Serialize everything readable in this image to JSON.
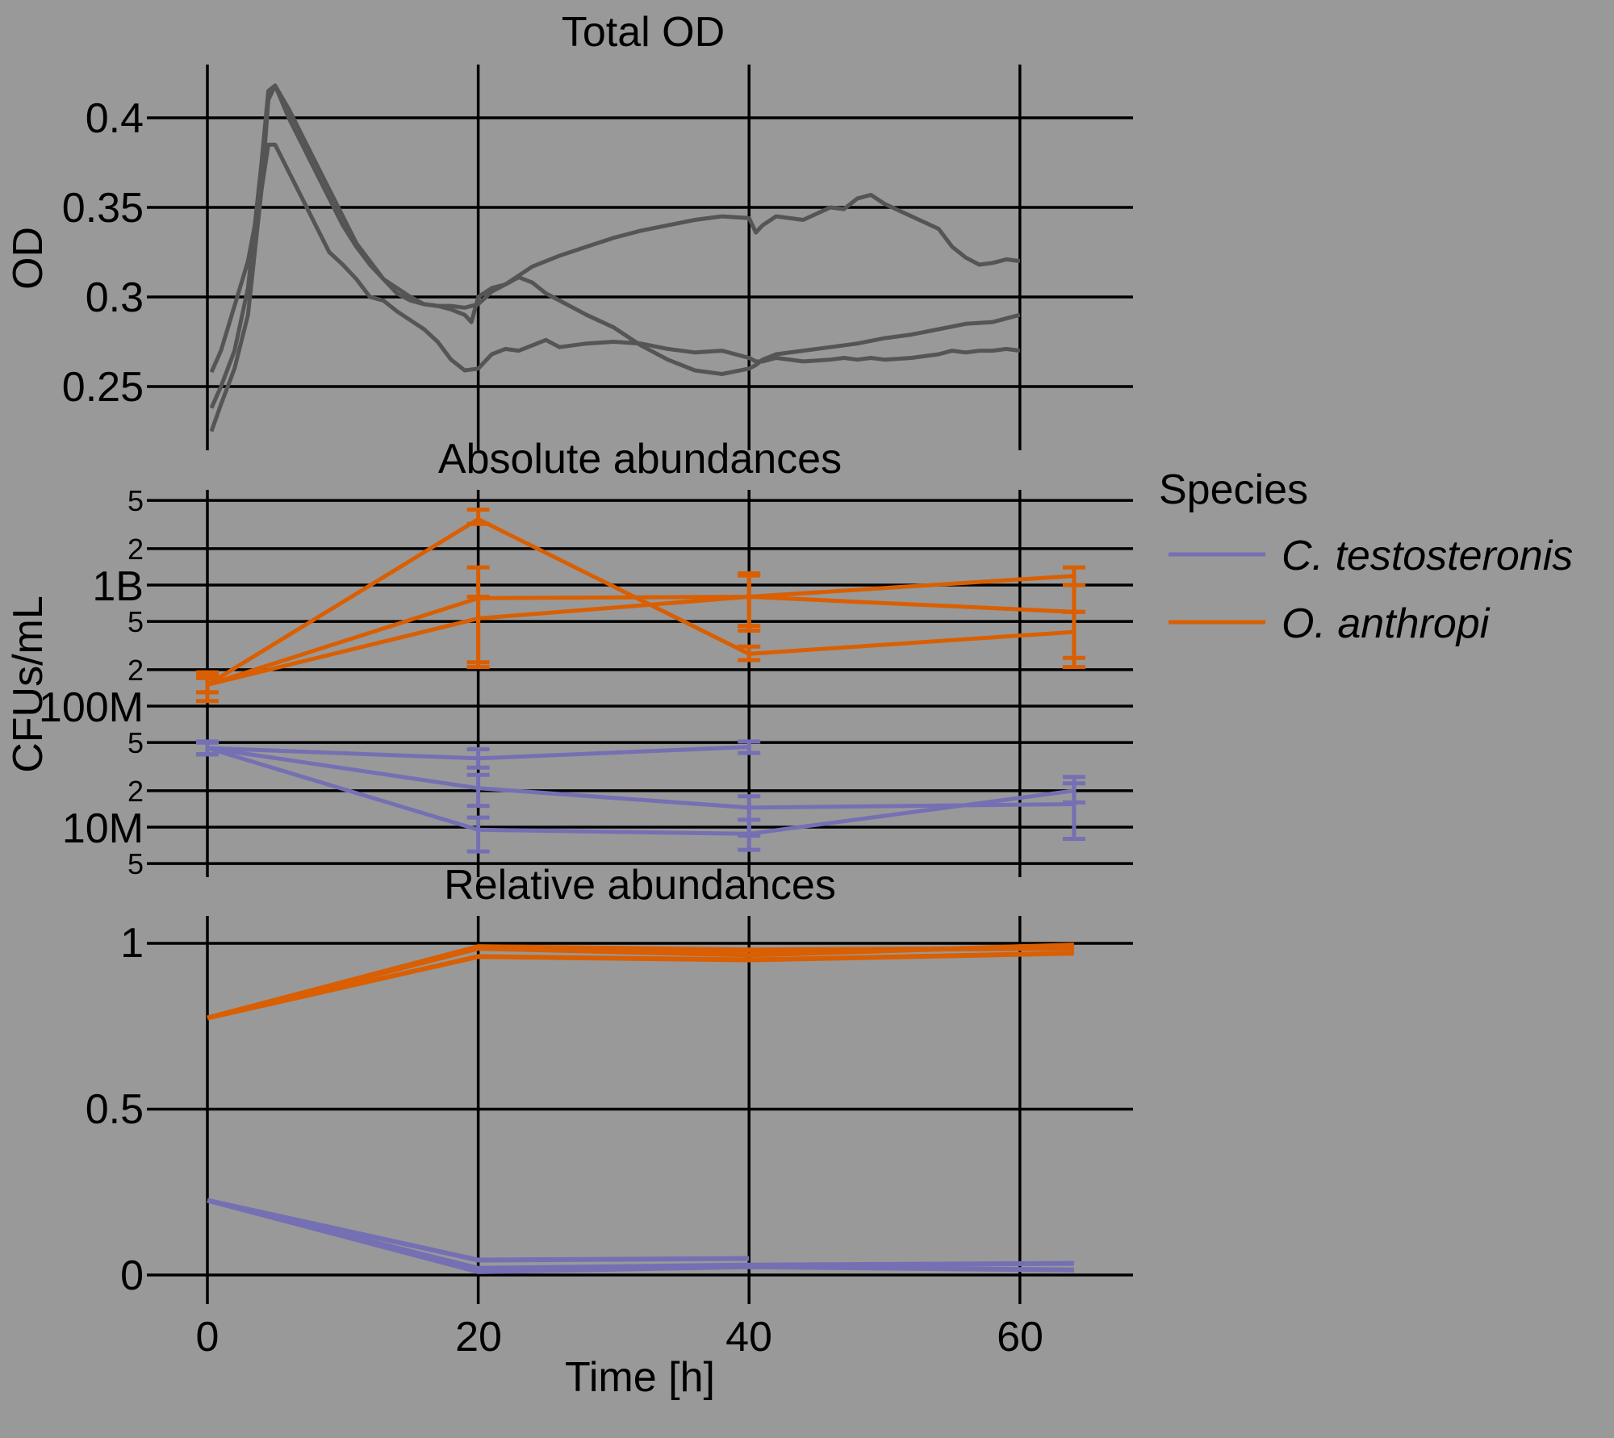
{
  "figure": {
    "xlabel": "Time [h]",
    "x_ticks": [
      "0",
      "20",
      "40",
      "60"
    ]
  },
  "panels": {
    "od": {
      "title": "Total OD",
      "ylabel": "OD",
      "y_ticks": [
        "0.4",
        "0.35",
        "0.3",
        "0.25"
      ]
    },
    "abs": {
      "title": "Absolute abundances",
      "ylabel": "CFUs/mL",
      "y_ticks_major": [
        "1B",
        "100M",
        "10M"
      ],
      "y_ticks_minor": [
        "5",
        "2",
        "5",
        "2",
        "5",
        "2",
        "5"
      ]
    },
    "rel": {
      "title": "Relative abundances",
      "y_ticks": [
        "1",
        "0.5",
        "0"
      ]
    }
  },
  "legend": {
    "title": "Species",
    "items": [
      {
        "label": "C. testosteronis",
        "color": "#7570b3"
      },
      {
        "label": "O. anthropi",
        "color": "#d95f02"
      }
    ]
  },
  "chart_data": [
    {
      "type": "line",
      "title": "Total OD",
      "xlabel": "Time [h]",
      "ylabel": "OD",
      "xlim": [
        -4,
        68
      ],
      "ylim": [
        0.22,
        0.43
      ],
      "grid": true,
      "color": "#555555",
      "series": [
        {
          "x": [
            0.3,
            1,
            2,
            3,
            4,
            4.5,
            5,
            6,
            7,
            8,
            9,
            10,
            11,
            12,
            13,
            14,
            15,
            16,
            17,
            18,
            19,
            20,
            21,
            22,
            23,
            24,
            25,
            26,
            28,
            30,
            32,
            34,
            36,
            38,
            40,
            40.5,
            41,
            42,
            44,
            46,
            47,
            48,
            49,
            50,
            52,
            54,
            55,
            56,
            57,
            58,
            59,
            60
          ],
          "y": [
            0.258,
            0.27,
            0.295,
            0.32,
            0.36,
            0.385,
            0.385,
            0.37,
            0.355,
            0.34,
            0.325,
            0.318,
            0.31,
            0.3,
            0.298,
            0.292,
            0.287,
            0.282,
            0.275,
            0.265,
            0.259,
            0.26,
            0.268,
            0.271,
            0.27,
            0.273,
            0.276,
            0.272,
            0.274,
            0.275,
            0.274,
            0.271,
            0.269,
            0.27,
            0.266,
            0.264,
            0.264,
            0.266,
            0.264,
            0.265,
            0.266,
            0.265,
            0.266,
            0.265,
            0.266,
            0.268,
            0.27,
            0.269,
            0.27,
            0.27,
            0.271,
            0.27
          ]
        },
        {
          "x": [
            0.3,
            1,
            2,
            3,
            4,
            4.5,
            5,
            6,
            7,
            8,
            9,
            10,
            11,
            12,
            13,
            14,
            15,
            16,
            17,
            18,
            19,
            20,
            21,
            22,
            23,
            24,
            25,
            26,
            28,
            30,
            32,
            34,
            36,
            38,
            40,
            40.5,
            41,
            42,
            44,
            46,
            48,
            50,
            52,
            54,
            56,
            58,
            60
          ],
          "y": [
            0.238,
            0.25,
            0.27,
            0.305,
            0.375,
            0.415,
            0.418,
            0.405,
            0.39,
            0.375,
            0.36,
            0.345,
            0.33,
            0.32,
            0.31,
            0.305,
            0.3,
            0.296,
            0.295,
            0.295,
            0.294,
            0.296,
            0.303,
            0.307,
            0.311,
            0.308,
            0.302,
            0.298,
            0.29,
            0.283,
            0.273,
            0.265,
            0.259,
            0.257,
            0.26,
            0.262,
            0.265,
            0.268,
            0.27,
            0.272,
            0.274,
            0.277,
            0.279,
            0.282,
            0.285,
            0.286,
            0.29
          ]
        },
        {
          "x": [
            0.3,
            1,
            2,
            3,
            4,
            4.5,
            5,
            6,
            7,
            8,
            9,
            10,
            11,
            12,
            13,
            14,
            15,
            16,
            17,
            18,
            19,
            19.5,
            20,
            21,
            22,
            23,
            24,
            26,
            28,
            30,
            32,
            34,
            36,
            38,
            40,
            40.5,
            41,
            42,
            44,
            46,
            47,
            48,
            49,
            50,
            52,
            54,
            55,
            56,
            57,
            58,
            59,
            60
          ],
          "y": [
            0.225,
            0.24,
            0.26,
            0.29,
            0.36,
            0.41,
            0.418,
            0.4,
            0.385,
            0.37,
            0.355,
            0.34,
            0.328,
            0.318,
            0.31,
            0.302,
            0.298,
            0.296,
            0.295,
            0.293,
            0.29,
            0.286,
            0.3,
            0.305,
            0.307,
            0.312,
            0.317,
            0.323,
            0.328,
            0.333,
            0.337,
            0.34,
            0.343,
            0.345,
            0.344,
            0.336,
            0.34,
            0.345,
            0.343,
            0.35,
            0.349,
            0.355,
            0.357,
            0.352,
            0.345,
            0.338,
            0.328,
            0.322,
            0.318,
            0.319,
            0.321,
            0.32
          ]
        }
      ]
    },
    {
      "type": "line",
      "title": "Absolute abundances",
      "xlabel": "Time [h]",
      "ylabel": "CFUs/mL",
      "y_scale": "log",
      "xlim": [
        -4,
        68
      ],
      "ylim": [
        4000000,
        6000000000
      ],
      "grid": true,
      "series": [
        {
          "name": "C. testosteronis",
          "color": "#7570b3",
          "replicates": [
            {
              "x": [
                0,
                20,
                40
              ],
              "y": [
                45000000,
                37000000,
                46000000
              ],
              "yerr_low": [
                40000000,
                31000000,
                41000000
              ],
              "yerr_high": [
                51000000,
                44000000,
                51000000
              ]
            },
            {
              "x": [
                0,
                20,
                40,
                64
              ],
              "y": [
                45000000,
                21000000,
                14500000,
                15500000
              ],
              "yerr_low": [
                40000000,
                15000000,
                8500000,
                8000000
              ],
              "yerr_high": [
                50000000,
                27000000,
                18000000,
                23000000
              ]
            },
            {
              "x": [
                0,
                20,
                40,
                64
              ],
              "y": [
                45000000,
                9500000,
                8800000,
                20000000
              ],
              "yerr_low": [
                40000000,
                6300000,
                6500000,
                16000000
              ],
              "yerr_high": [
                50000000,
                12000000,
                11500000,
                26000000
              ]
            }
          ]
        },
        {
          "name": "O. anthropi",
          "color": "#d95f02",
          "replicates": [
            {
              "x": [
                0,
                20,
                40,
                64
              ],
              "y": [
                150000000,
                3500000000,
                270000000,
                410000000
              ],
              "yerr_low": [
                110000000,
                3200000000,
                240000000,
                250000000
              ],
              "yerr_high": [
                190000000,
                4200000000,
                310000000,
                600000000
              ]
            },
            {
              "x": [
                0,
                20,
                40,
                64
              ],
              "y": [
                150000000,
                780000000,
                800000000,
                1190000000
              ],
              "yerr_low": [
                130000000,
                210000000,
                420000000,
                600000000
              ],
              "yerr_high": [
                180000000,
                1400000000,
                1250000000,
                1400000000
              ]
            },
            {
              "x": [
                0,
                20,
                40,
                64
              ],
              "y": [
                150000000,
                530000000,
                800000000,
                600000000
              ],
              "yerr_low": [
                130000000,
                230000000,
                460000000,
                210000000
              ],
              "yerr_high": [
                170000000,
                800000000,
                1200000000,
                1000000000
              ]
            }
          ]
        }
      ]
    },
    {
      "type": "line",
      "title": "Relative abundances",
      "xlabel": "Time [h]",
      "ylabel": "",
      "xlim": [
        -4,
        68
      ],
      "ylim": [
        -0.07,
        1.1
      ],
      "grid": true,
      "series": [
        {
          "name": "C. testosteronis",
          "color": "#7570b3",
          "replicates": [
            {
              "x": [
                0,
                20,
                40
              ],
              "y": [
                0.225,
                0.045,
                0.05
              ]
            },
            {
              "x": [
                0,
                20,
                40,
                64
              ],
              "y": [
                0.225,
                0.01,
                0.025,
                0.015
              ]
            },
            {
              "x": [
                0,
                20,
                40,
                64
              ],
              "y": [
                0.225,
                0.02,
                0.03,
                0.035
              ]
            }
          ]
        },
        {
          "name": "O. anthropi",
          "color": "#d95f02",
          "replicates": [
            {
              "x": [
                0,
                20,
                40,
                64
              ],
              "y": [
                0.775,
                0.99,
                0.98,
                0.985
              ]
            },
            {
              "x": [
                0,
                20,
                40,
                64
              ],
              "y": [
                0.775,
                0.96,
                0.95,
                0.97
              ]
            },
            {
              "x": [
                0,
                20,
                40,
                64
              ],
              "y": [
                0.775,
                0.985,
                0.965,
                0.995
              ]
            }
          ]
        }
      ]
    }
  ]
}
